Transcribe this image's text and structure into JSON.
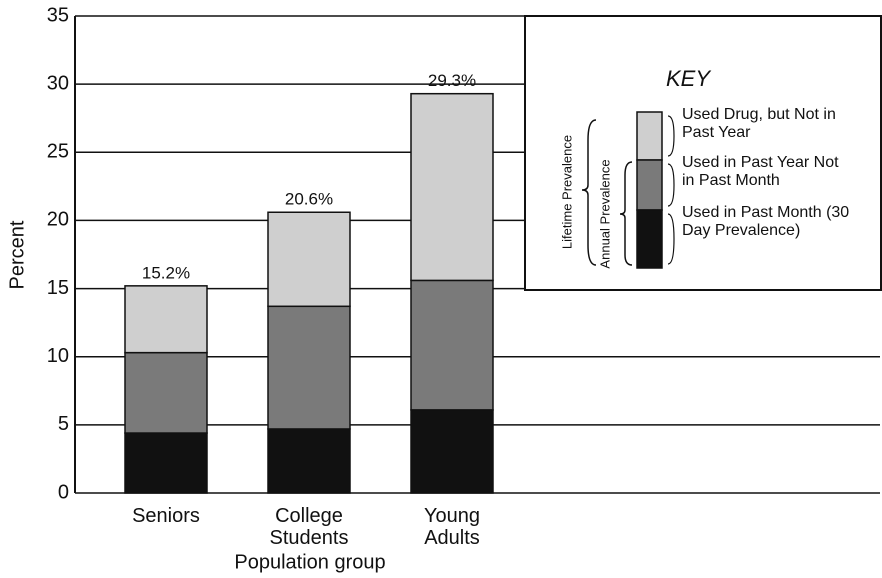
{
  "chart_data": {
    "type": "stacked_bar",
    "ylabel": "Percent",
    "xlabel": "Population group",
    "categories": [
      "Seniors",
      "College Students",
      "Young Adults"
    ],
    "series": [
      {
        "name": "Used in Past Month (30 Day Prevalence)",
        "color": "#111111",
        "values": [
          4.4,
          4.7,
          6.1
        ]
      },
      {
        "name": "Used in Past Year Not in Past Month",
        "color": "#7a7a7a",
        "values": [
          5.9,
          9.0,
          9.5
        ]
      },
      {
        "name": "Used Drug, but Not in Past Year",
        "color": "#cfcfcf",
        "values": [
          4.9,
          6.9,
          13.7
        ]
      }
    ],
    "totals": [
      15.2,
      20.6,
      29.3
    ],
    "total_labels": [
      "15.2%",
      "20.6%",
      "29.3%"
    ],
    "ylim": [
      0,
      35
    ],
    "yticks": [
      0,
      5,
      10,
      15,
      20,
      25,
      30,
      35
    ],
    "grid": true,
    "legend": {
      "title": "KEY",
      "position": "upper right",
      "brackets": [
        "Lifetime Prevalence",
        "Annual Prevalence"
      ]
    }
  }
}
